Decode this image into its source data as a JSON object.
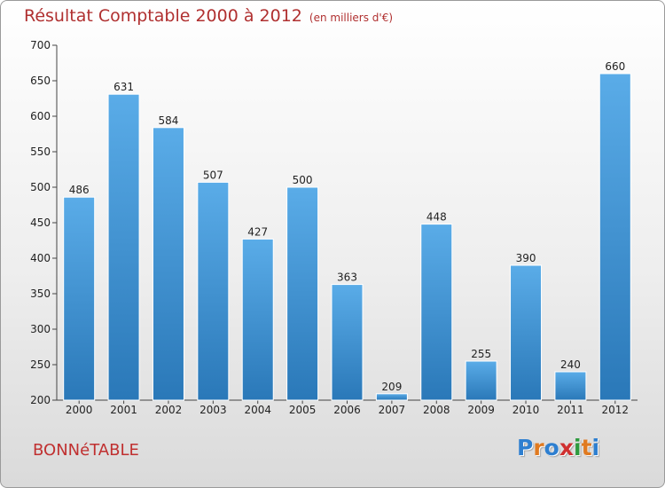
{
  "header": {
    "title": "Résultat Comptable 2000 à 2012",
    "unit_note": "(en milliers d'€)"
  },
  "footer": {
    "commune": "BONNéTABLE",
    "logo_letters": [
      "P",
      "r",
      "o",
      "x",
      "i",
      "t",
      "i"
    ]
  },
  "colors": {
    "bar_light": "#5aace8",
    "bar_dark": "#2a78b8",
    "title": "#b03030",
    "logo": [
      "#2e7fd0",
      "#e07a20",
      "#2e7fd0",
      "#d03030",
      "#2e9a3e",
      "#e07a20",
      "#2e7fd0"
    ]
  },
  "chart_data": {
    "type": "bar",
    "title": "Résultat Comptable 2000 à 2012",
    "unit": "(en milliers d'€)",
    "categories": [
      "2000",
      "2001",
      "2002",
      "2003",
      "2004",
      "2005",
      "2006",
      "2007",
      "2008",
      "2009",
      "2010",
      "2011",
      "2012"
    ],
    "values": [
      486,
      631,
      584,
      507,
      427,
      500,
      363,
      209,
      448,
      255,
      390,
      240,
      660
    ],
    "ylim": [
      200,
      700
    ],
    "yticks": [
      200,
      250,
      300,
      350,
      400,
      450,
      500,
      550,
      600,
      650,
      700
    ],
    "grid": false,
    "data_labels": true
  }
}
